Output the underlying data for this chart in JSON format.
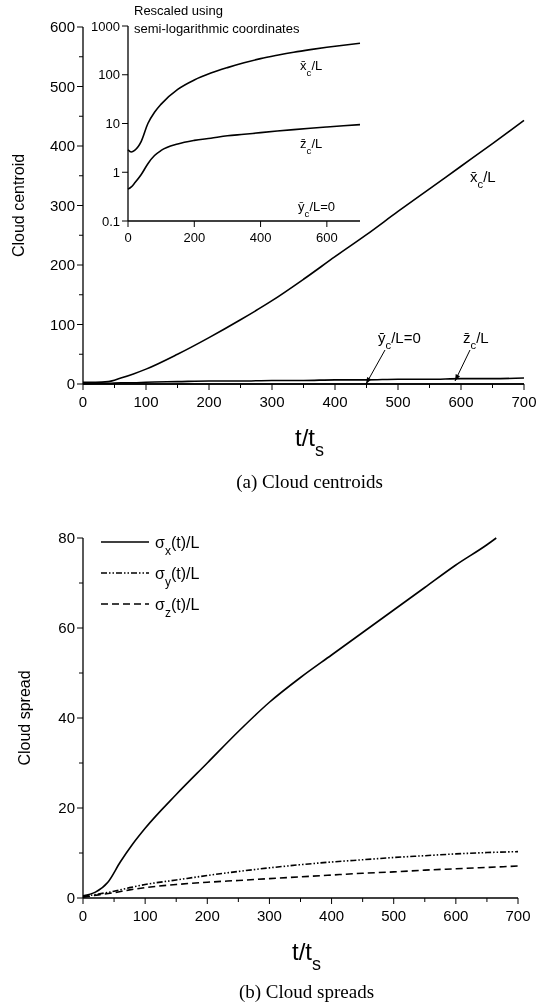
{
  "chart_data": [
    {
      "type": "line",
      "title": "(a) Cloud centroids",
      "xlabel": "t/t$_{s}$",
      "ylabel": "Cloud centroid",
      "xlim": [
        0,
        700
      ],
      "ylim": [
        0,
        600
      ],
      "xticks": [
        0,
        {
          "value": 50,
          "label": null
        },
        100,
        {
          "value": 150,
          "label": null
        },
        200,
        {
          "value": 250,
          "label": null
        },
        300,
        {
          "value": 350,
          "label": null
        },
        400,
        {
          "value": 450,
          "label": null
        },
        500,
        {
          "value": 550,
          "label": null
        },
        600,
        {
          "value": 650,
          "label": null
        },
        700
      ],
      "yticks": [
        0,
        {
          "value": 50,
          "label": null
        },
        100,
        {
          "value": 150,
          "label": null
        },
        200,
        {
          "value": 250,
          "label": null
        },
        300,
        {
          "value": 350,
          "label": null
        },
        400,
        {
          "value": 450,
          "label": null
        },
        500,
        {
          "value": 550,
          "label": null
        },
        600
      ],
      "x": [
        0,
        20,
        40,
        60,
        80,
        100,
        150,
        200,
        250,
        300,
        350,
        400,
        450,
        500,
        550,
        600,
        650,
        700
      ],
      "grid": false,
      "series": [
        {
          "name": "x̄$_{c}$/L",
          "color": "#000000",
          "line_style": "solid",
          "values": [
            3,
            3,
            4,
            10,
            17,
            25,
            50,
            78,
            108,
            140,
            176,
            214,
            251,
            290,
            328,
            366,
            404,
            443
          ]
        },
        {
          "name": "ȳ$_{c}$/L=0",
          "color": "#000000",
          "line_style": "solid",
          "values": [
            0,
            0,
            0,
            0,
            0,
            0,
            0,
            0,
            0,
            0,
            0,
            0,
            0,
            0,
            0,
            0,
            0,
            0
          ]
        },
        {
          "name": "z̄$_{c}$/L",
          "color": "#000000",
          "line_style": "solid",
          "values": [
            0,
            1,
            1,
            2,
            2,
            3,
            4,
            5,
            5,
            6,
            6,
            7,
            7,
            8,
            8,
            9,
            9,
            10
          ]
        }
      ]
    },
    {
      "type": "line",
      "title": "Rescaled using semi-logarithmic coordinates",
      "log": "y",
      "xlim": [
        0,
        700
      ],
      "ylim": [
        0.1,
        1000
      ],
      "xticks": [
        0,
        200,
        400,
        600
      ],
      "yticks": [
        0.1,
        1,
        10,
        100,
        1000
      ],
      "x": [
        0,
        10,
        20,
        40,
        60,
        80,
        100,
        150,
        200,
        250,
        300,
        350,
        400,
        450,
        500,
        550,
        600,
        650,
        700
      ],
      "grid": false,
      "annotations": [
        "ȳ$_{c}$/L=0"
      ],
      "series": [
        {
          "name": "x̄$_{c}$/L",
          "color": "#000000",
          "line_style": "solid",
          "values": [
            2.9,
            2.6,
            2.8,
            4.3,
            10,
            17,
            25,
            50,
            78,
            108,
            140,
            176,
            214,
            251,
            290,
            328,
            366,
            404,
            443
          ]
        },
        {
          "name": "z̄$_{c}$/L",
          "color": "#000000",
          "line_style": "solid",
          "values": [
            0.45,
            0.5,
            0.6,
            0.9,
            1.5,
            2.2,
            2.8,
            3.8,
            4.5,
            5,
            5.6,
            6,
            6.5,
            7,
            7.5,
            8,
            8.5,
            9,
            9.5
          ]
        }
      ]
    },
    {
      "type": "line",
      "title": "(b) Cloud spreads",
      "xlabel": "t/t$_{s}$",
      "ylabel": "Cloud spread",
      "xlim": [
        0,
        700
      ],
      "ylim": [
        0,
        80
      ],
      "xticks": [
        0,
        {
          "value": 50,
          "label": null
        },
        100,
        {
          "value": 150,
          "label": null
        },
        200,
        {
          "value": 250,
          "label": null
        },
        300,
        {
          "value": 350,
          "label": null
        },
        400,
        {
          "value": 450,
          "label": null
        },
        500,
        {
          "value": 550,
          "label": null
        },
        600,
        {
          "value": 650,
          "label": null
        },
        700
      ],
      "yticks": [
        0,
        {
          "value": 10,
          "label": null
        },
        20,
        {
          "value": 30,
          "label": null
        },
        40,
        {
          "value": 50,
          "label": null
        },
        60,
        {
          "value": 70,
          "label": null
        },
        80
      ],
      "grid": false,
      "legend": "top left",
      "series": [
        {
          "name": "σ$_{x}$(t)/L",
          "color": "#000000",
          "line_style": "solid",
          "x": [
            0,
            20,
            40,
            60,
            80,
            100,
            150,
            200,
            250,
            300,
            350,
            400,
            450,
            500,
            550,
            600,
            650,
            665
          ],
          "values": [
            0.5,
            1.3,
            3.5,
            8,
            12,
            15.5,
            23,
            30,
            37,
            43.5,
            49,
            54,
            59,
            64,
            69,
            74,
            78.5,
            80
          ]
        },
        {
          "name": "σ$_{y}$(t)/L",
          "color": "#000000",
          "line_style": "dotted",
          "x": [
            0,
            25,
            50,
            75,
            100,
            150,
            200,
            250,
            300,
            350,
            400,
            450,
            500,
            550,
            600,
            650,
            700
          ],
          "values": [
            0.3,
            0.9,
            1.5,
            2.3,
            3,
            4,
            5,
            5.9,
            6.7,
            7.4,
            8,
            8.5,
            9,
            9.4,
            9.8,
            10.1,
            10.3
          ]
        },
        {
          "name": "σ$_{z}$(t)/L",
          "color": "#000000",
          "line_style": "dashed",
          "x": [
            0,
            25,
            50,
            75,
            100,
            150,
            200,
            250,
            300,
            350,
            400,
            450,
            500,
            550,
            600,
            650,
            700
          ],
          "values": [
            0.2,
            0.7,
            1.2,
            1.8,
            2.3,
            3,
            3.5,
            3.9,
            4.3,
            4.7,
            5.1,
            5.5,
            5.8,
            6.2,
            6.5,
            6.8,
            7.1
          ]
        }
      ]
    }
  ]
}
